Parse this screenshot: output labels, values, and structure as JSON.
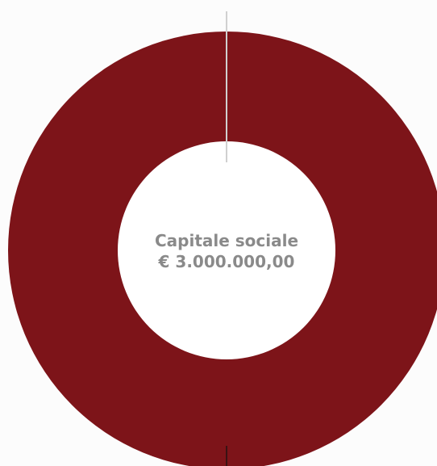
{
  "chart_data": {
    "type": "pie",
    "variant": "donut",
    "center_label": {
      "line1": "Capitale sociale",
      "line2": "€ 3.000.000,00"
    },
    "slices": [
      {
        "value": 100,
        "color": "#7d1419"
      }
    ],
    "legend": "none"
  },
  "colors": {
    "background": "#fcfcfc",
    "hole": "#ffffff",
    "separator_light": "#d0d0d0",
    "separator_dark": "#3a1214",
    "label": "#8a8a8a"
  }
}
